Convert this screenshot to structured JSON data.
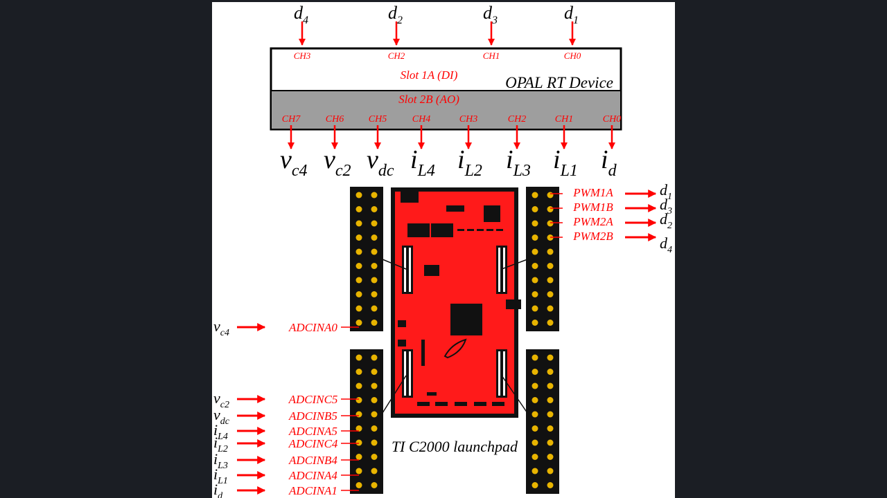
{
  "device": {
    "name": "OPAL RT Device",
    "slot_di": "Slot 1A (DI)",
    "slot_ao": "Slot 2B (AO)",
    "di_channels": [
      {
        "ch": "CH3",
        "d": "d",
        "sub": "4"
      },
      {
        "ch": "CH2",
        "d": "d",
        "sub": "2"
      },
      {
        "ch": "CH1",
        "d": "d",
        "sub": "3"
      },
      {
        "ch": "CH0",
        "d": "d",
        "sub": "1"
      }
    ],
    "ao_channels": [
      {
        "ch": "CH7",
        "sym": "v",
        "sub": "c4"
      },
      {
        "ch": "CH6",
        "sym": "v",
        "sub": "c2"
      },
      {
        "ch": "CH5",
        "sym": "v",
        "sub": "dc"
      },
      {
        "ch": "CH4",
        "sym": "i",
        "sub": "L4"
      },
      {
        "ch": "CH3",
        "sym": "i",
        "sub": "L2"
      },
      {
        "ch": "CH2",
        "sym": "i",
        "sub": "L3"
      },
      {
        "ch": "CH1",
        "sym": "i",
        "sub": "L1"
      },
      {
        "ch": "CH0",
        "sym": "i",
        "sub": "d"
      }
    ]
  },
  "board": {
    "name": "TI C2000 launchpad",
    "pwm_outputs": [
      {
        "pin": "PWM1A",
        "d": "d",
        "sub": "1"
      },
      {
        "pin": "PWM1B",
        "d": "d",
        "sub": "3"
      },
      {
        "pin": "PWM2A",
        "d": "d",
        "sub": "2"
      },
      {
        "pin": "PWM2B",
        "d": "d",
        "sub": "4"
      }
    ],
    "adc_top": {
      "sym": "v",
      "sub": "c4",
      "pin": "ADCINA0"
    },
    "adc_inputs": [
      {
        "sym": "v",
        "sub": "c2",
        "pin": "ADCINC5"
      },
      {
        "sym": "v",
        "sub": "dc",
        "pin": "ADCINB5"
      },
      {
        "sym": "i",
        "sub": "L4",
        "pin": "ADCINA5"
      },
      {
        "sym": "i",
        "sub": "L2",
        "pin": "ADCINC4"
      },
      {
        "sym": "i",
        "sub": "L3",
        "pin": "ADCINB4"
      },
      {
        "sym": "i",
        "sub": "L1",
        "pin": "ADCINA4"
      },
      {
        "sym": "i",
        "sub": "d",
        "pin": "ADCINA1"
      }
    ]
  },
  "colors": {
    "signal": "#ff0000",
    "board": "#ff1a1a",
    "header": "#111111",
    "pin": "#e8b400",
    "slot_ao_bg": "#9e9e9e"
  }
}
